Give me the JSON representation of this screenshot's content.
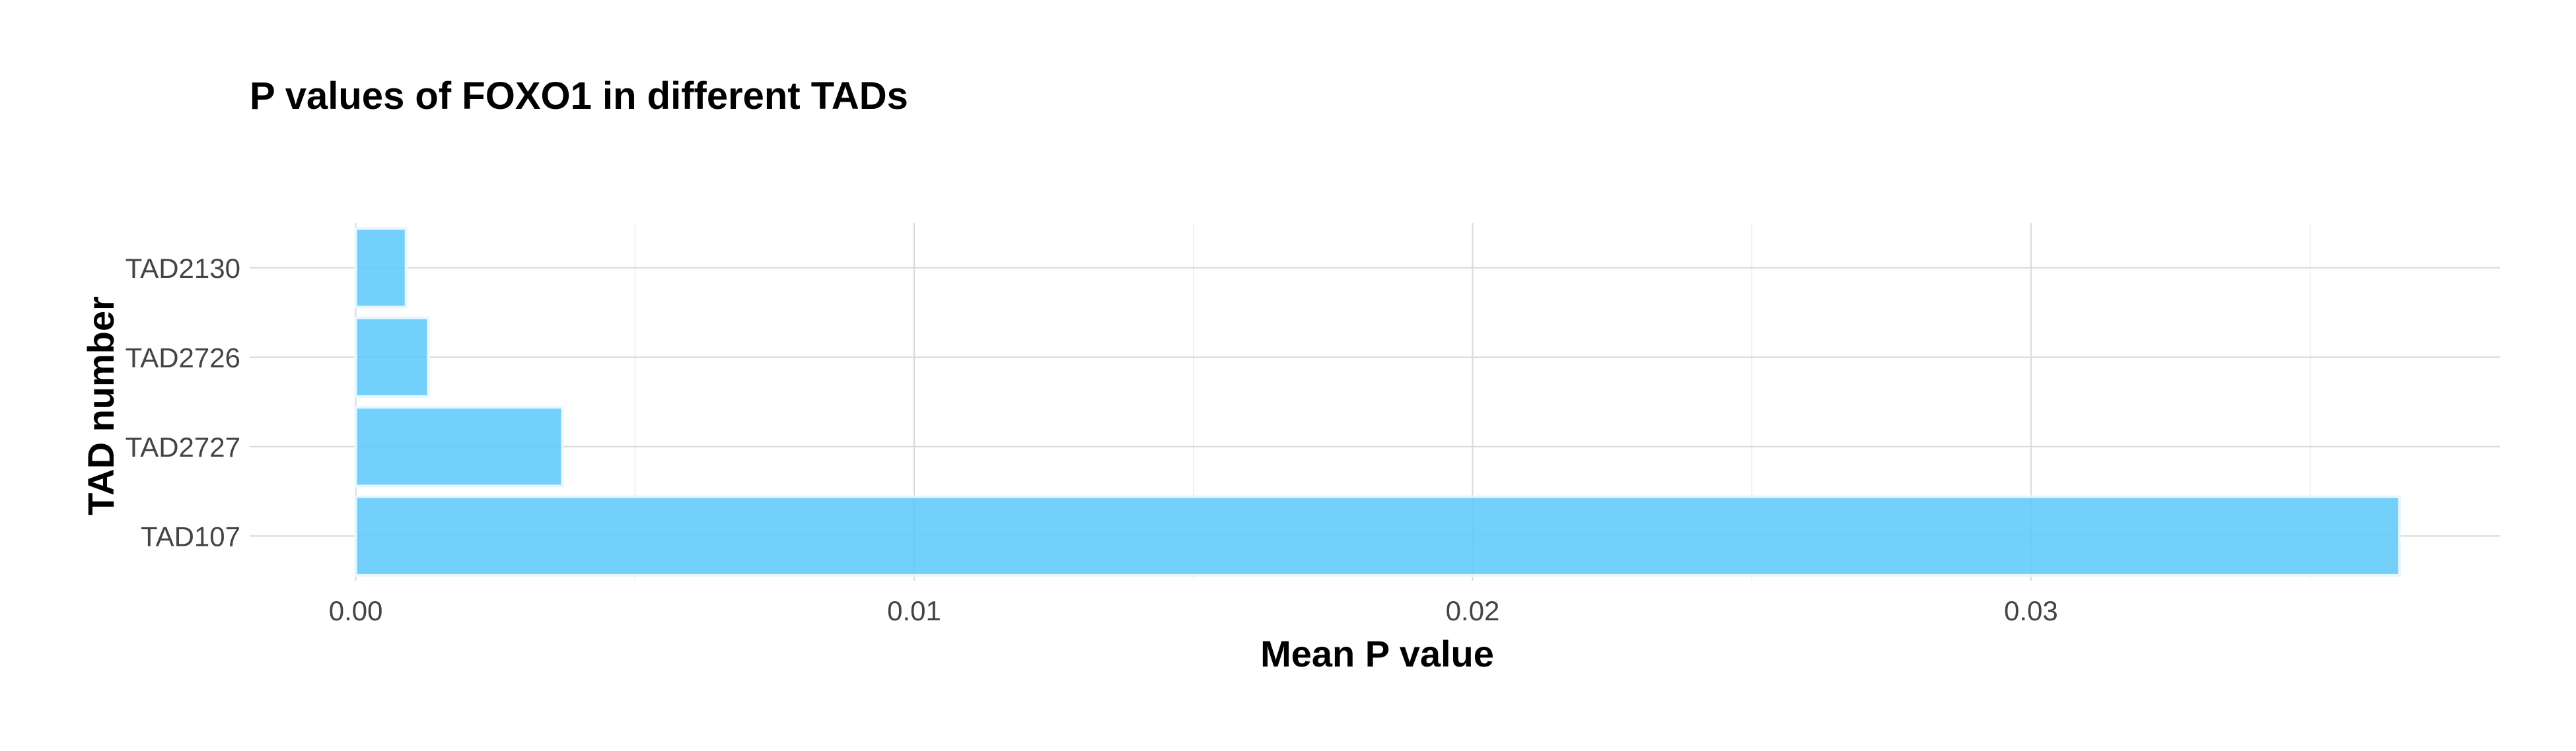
{
  "chart_data": {
    "type": "bar",
    "orientation": "horizontal",
    "title": "P values of FOXO1 in different TADs",
    "xlabel": "Mean P value",
    "ylabel": "TAD number",
    "categories": [
      "TAD2130",
      "TAD2726",
      "TAD2727",
      "TAD107"
    ],
    "values": [
      0.0009,
      0.0013,
      0.0037,
      0.0366
    ],
    "xlim": [
      -0.0019,
      0.0384
    ],
    "xticks": [
      0.0,
      0.01,
      0.02,
      0.03
    ],
    "xtick_labels": [
      "0.00",
      "0.01",
      "0.02",
      "0.03"
    ],
    "grid": true,
    "bar_color": "#5AC8FA",
    "legend": "none"
  }
}
